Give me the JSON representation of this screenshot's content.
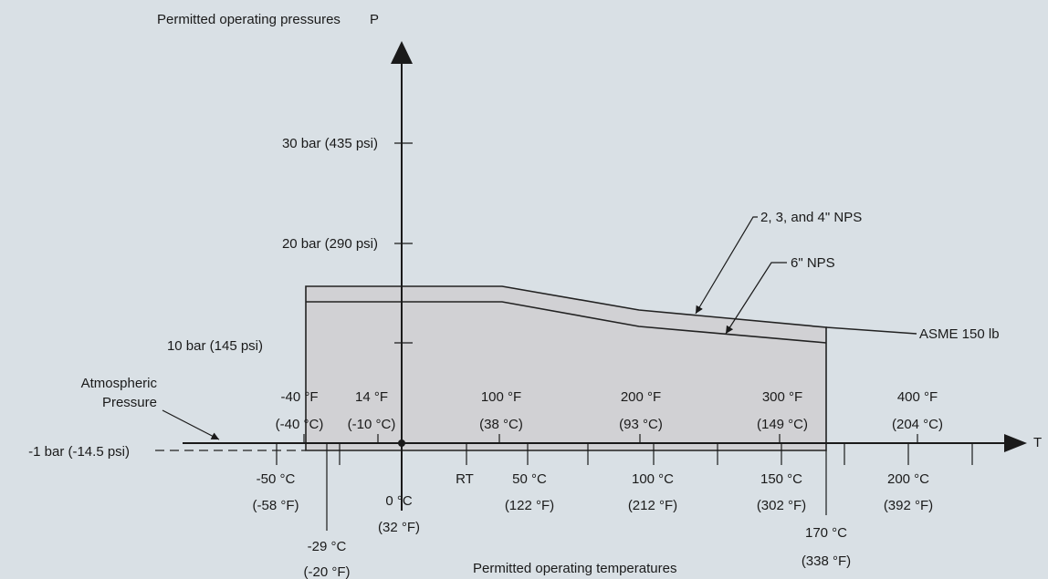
{
  "y_axis": {
    "title": "Permitted operating pressures",
    "symbol": "P"
  },
  "x_axis": {
    "title": "Permitted operating temperatures",
    "symbol": "T"
  },
  "pressure_labels": {
    "p30": "30 bar (435 psi)",
    "p20": "20 bar (290 psi)",
    "p10": "10 bar (145 psi)",
    "pm1": "-1 bar (-14.5 psi)"
  },
  "atmospheric": {
    "line1": "Atmospheric",
    "line2": "Pressure"
  },
  "fahrenheit_labels": [
    {
      "f": "-40 °F",
      "c": "(-40 °C)"
    },
    {
      "f": "14 °F",
      "c": "(-10 °C)"
    },
    {
      "f": "100 °F",
      "c": "(38 °C)"
    },
    {
      "f": "200 °F",
      "c": "(93 °C)"
    },
    {
      "f": "300 °F",
      "c": "(149 °C)"
    },
    {
      "f": "400 °F",
      "c": "(204 °C)"
    }
  ],
  "celsius_labels": [
    {
      "c": "-50 °C",
      "f": "(-58 °F)"
    },
    {
      "c": "0 °C",
      "f": "(32 °F)"
    },
    {
      "c": "RT",
      "f": ""
    },
    {
      "c": "50 °C",
      "f": "(122 °F)"
    },
    {
      "c": "100 °C",
      "f": "(212 °F)"
    },
    {
      "c": "150 °C",
      "f": "(302 °F)"
    },
    {
      "c": "200 °C",
      "f": "(392 °F)"
    }
  ],
  "special_temps": {
    "t29": {
      "c": "-29 °C",
      "f": "(-20 °F)"
    },
    "t170": {
      "c": "170 °C",
      "f": "(338 °F)"
    }
  },
  "curves": {
    "nps_small": "2, 3, and 4\" NPS",
    "nps_large": "6\" NPS",
    "asme": "ASME 150 lb"
  },
  "colors": {
    "background": "#d9e0e5",
    "region_fill": "#d1d1d4",
    "ink": "#1a1a1a"
  }
}
